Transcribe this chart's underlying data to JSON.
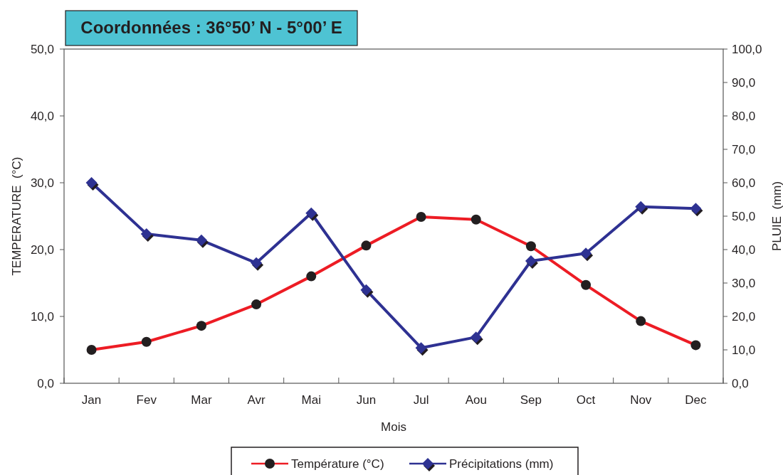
{
  "chart_data": {
    "type": "line",
    "title": "Coordonnées : 36°50’ N - 5°00’ E",
    "xlabel": "Mois",
    "ylabel": "TEMPERATURE  (°C)",
    "y2label": "PLUIE  (mm)",
    "categories": [
      "Jan",
      "Fev",
      "Mar",
      "Avr",
      "Mai",
      "Jun",
      "Jul",
      "Aou",
      "Sep",
      "Oct",
      "Nov",
      "Dec"
    ],
    "series": [
      {
        "name": "Température (°C)",
        "color": "#ed1c24",
        "marker": "circle",
        "values": [
          5.0,
          6.2,
          8.6,
          11.8,
          16.0,
          20.6,
          24.9,
          24.5,
          20.5,
          14.7,
          9.3,
          5.7
        ]
      },
      {
        "name": "Précipitations (mm)",
        "color": "#2e3192",
        "marker": "diamond",
        "axis": "y2",
        "values": [
          60.0,
          44.7,
          42.8,
          36.0,
          50.9,
          27.9,
          10.6,
          13.8,
          36.6,
          38.9,
          52.8,
          52.3
        ]
      }
    ],
    "ylim": [
      0,
      50
    ],
    "yticks": [
      {
        "value": 0,
        "label": "0,0"
      },
      {
        "value": 10,
        "label": "10,0"
      },
      {
        "value": 20,
        "label": "20,0"
      },
      {
        "value": 30,
        "label": "30,0"
      },
      {
        "value": 40,
        "label": "40,0"
      },
      {
        "value": 50,
        "label": "50,0"
      }
    ],
    "y2lim": [
      0,
      100
    ],
    "y2ticks": [
      {
        "value": 0,
        "label": "0,0"
      },
      {
        "value": 10,
        "label": "10,0"
      },
      {
        "value": 20,
        "label": "20,0"
      },
      {
        "value": 30,
        "label": "30,0"
      },
      {
        "value": 40,
        "label": "40,0"
      },
      {
        "value": 50,
        "label": "50,0"
      },
      {
        "value": 60,
        "label": "60,0"
      },
      {
        "value": 70,
        "label": "70,0"
      },
      {
        "value": 80,
        "label": "80,0"
      },
      {
        "value": 90,
        "label": "90,0"
      },
      {
        "value": 100,
        "label": "100,0"
      }
    ],
    "grid": false,
    "legend": "bottom",
    "line_style": "solid"
  }
}
